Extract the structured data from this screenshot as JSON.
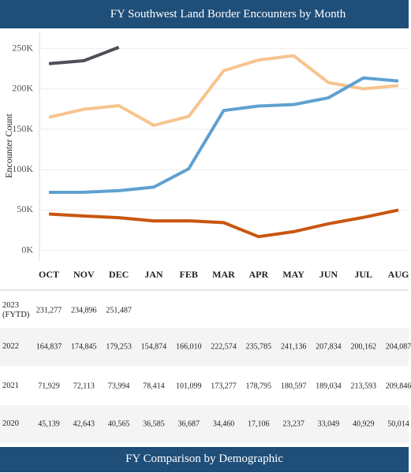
{
  "chart_data": {
    "type": "line",
    "title": "FY Southwest Land Border Encounters by Month",
    "ylabel": "Encounter Count",
    "categories": [
      "OCT",
      "NOV",
      "DEC",
      "JAN",
      "FEB",
      "MAR",
      "APR",
      "MAY",
      "JUN",
      "JUL",
      "AUG"
    ],
    "ylim": [
      -12000,
      273000
    ],
    "yticks": [
      {
        "value": 0,
        "label": "0K"
      },
      {
        "value": 50000,
        "label": "50K"
      },
      {
        "value": 100000,
        "label": "100K"
      },
      {
        "value": 150000,
        "label": "150K"
      },
      {
        "value": 200000,
        "label": "200K"
      },
      {
        "value": 250000,
        "label": "250K"
      }
    ],
    "grid": true,
    "series": [
      {
        "name": "2023 (FYTD)",
        "color": "#4f4f57",
        "values": [
          231277,
          234896,
          251487,
          null,
          null,
          null,
          null,
          null,
          null,
          null,
          null
        ],
        "value_labels": [
          "231,277",
          "234,896",
          "251,487",
          null,
          null,
          null,
          null,
          null,
          null,
          null,
          null
        ]
      },
      {
        "name": "2022",
        "color": "#f7c48e",
        "values": [
          164837,
          174845,
          179253,
          154874,
          166010,
          222574,
          235785,
          241136,
          207834,
          200162,
          204087
        ],
        "value_labels": [
          "164,837",
          "174,845",
          "179,253",
          "154,874",
          "166,010",
          "222,574",
          "235,785",
          "241,136",
          "207,834",
          "200,162",
          "204,087"
        ]
      },
      {
        "name": "2021",
        "color": "#5ea1d0",
        "values": [
          71929,
          72113,
          73994,
          78414,
          101099,
          173277,
          178795,
          180597,
          189034,
          213593,
          209846
        ],
        "value_labels": [
          "71,929",
          "72,113",
          "73,994",
          "78,414",
          "101,099",
          "173,277",
          "178,795",
          "180,597",
          "189,034",
          "213,593",
          "209,846"
        ]
      },
      {
        "name": "2020",
        "color": "#c9560f",
        "values": [
          45139,
          42643,
          40565,
          36585,
          36687,
          34460,
          17106,
          23237,
          33049,
          40929,
          50014
        ],
        "value_labels": [
          "45,139",
          "42,643",
          "40,565",
          "36,585",
          "36,687",
          "34,460",
          "17,106",
          "23,237",
          "33,049",
          "40,929",
          "50,014"
        ]
      }
    ]
  },
  "footer": {
    "title": "FY Comparison by Demographic"
  }
}
